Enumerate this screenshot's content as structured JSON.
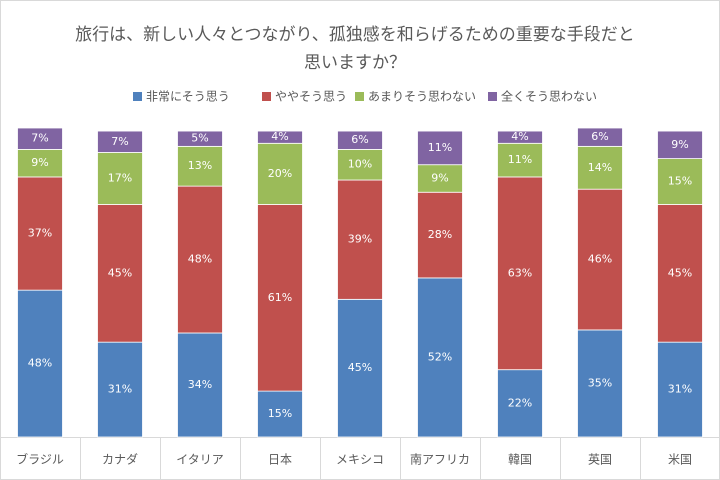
{
  "chart_data": {
    "type": "stacked_bar",
    "title": [
      "旅行は、新しい人々とつながり、孤独感を和らげるための重要な手段だと",
      "思いますか？"
    ],
    "categories": [
      "ブラジル",
      "カナダ",
      "イタリア",
      "日本",
      "メキシコ",
      "南アフリカ",
      "韓国",
      "英国",
      "米国"
    ],
    "series": [
      {
        "name": "非常にそう思う",
        "color": "#4f81bd",
        "values": [
          48,
          31,
          34,
          15,
          45,
          52,
          22,
          35,
          31
        ],
        "value_labels": [
          "48%",
          "31%",
          "34%",
          "15%",
          "45%",
          "52%",
          "22%",
          "35%",
          "31%"
        ]
      },
      {
        "name": "ややそう思う",
        "color": "#c0504d",
        "values": [
          37,
          45,
          48,
          61,
          39,
          28,
          63,
          46,
          45
        ],
        "value_labels": [
          "37%",
          "45%",
          "48%",
          "61%",
          "39%",
          "28%",
          "63%",
          "46%",
          "45%"
        ]
      },
      {
        "name": "あまりそう思わない",
        "color": "#9bbb59",
        "values": [
          9,
          17,
          13,
          20,
          10,
          9,
          11,
          14,
          15
        ],
        "value_labels": [
          "9%",
          "17%",
          "13%",
          "20%",
          "10%",
          "9%",
          "11%",
          "14%",
          "15%"
        ]
      },
      {
        "name": "全くそう思わない",
        "color": "#8064a2",
        "values": [
          7,
          7,
          5,
          4,
          6,
          11,
          4,
          6,
          9
        ],
        "value_labels": [
          "7%",
          "7%",
          "5%",
          "4%",
          "6%",
          "11%",
          "4%",
          "6%",
          "9%"
        ]
      }
    ],
    "legend": "top"
  }
}
